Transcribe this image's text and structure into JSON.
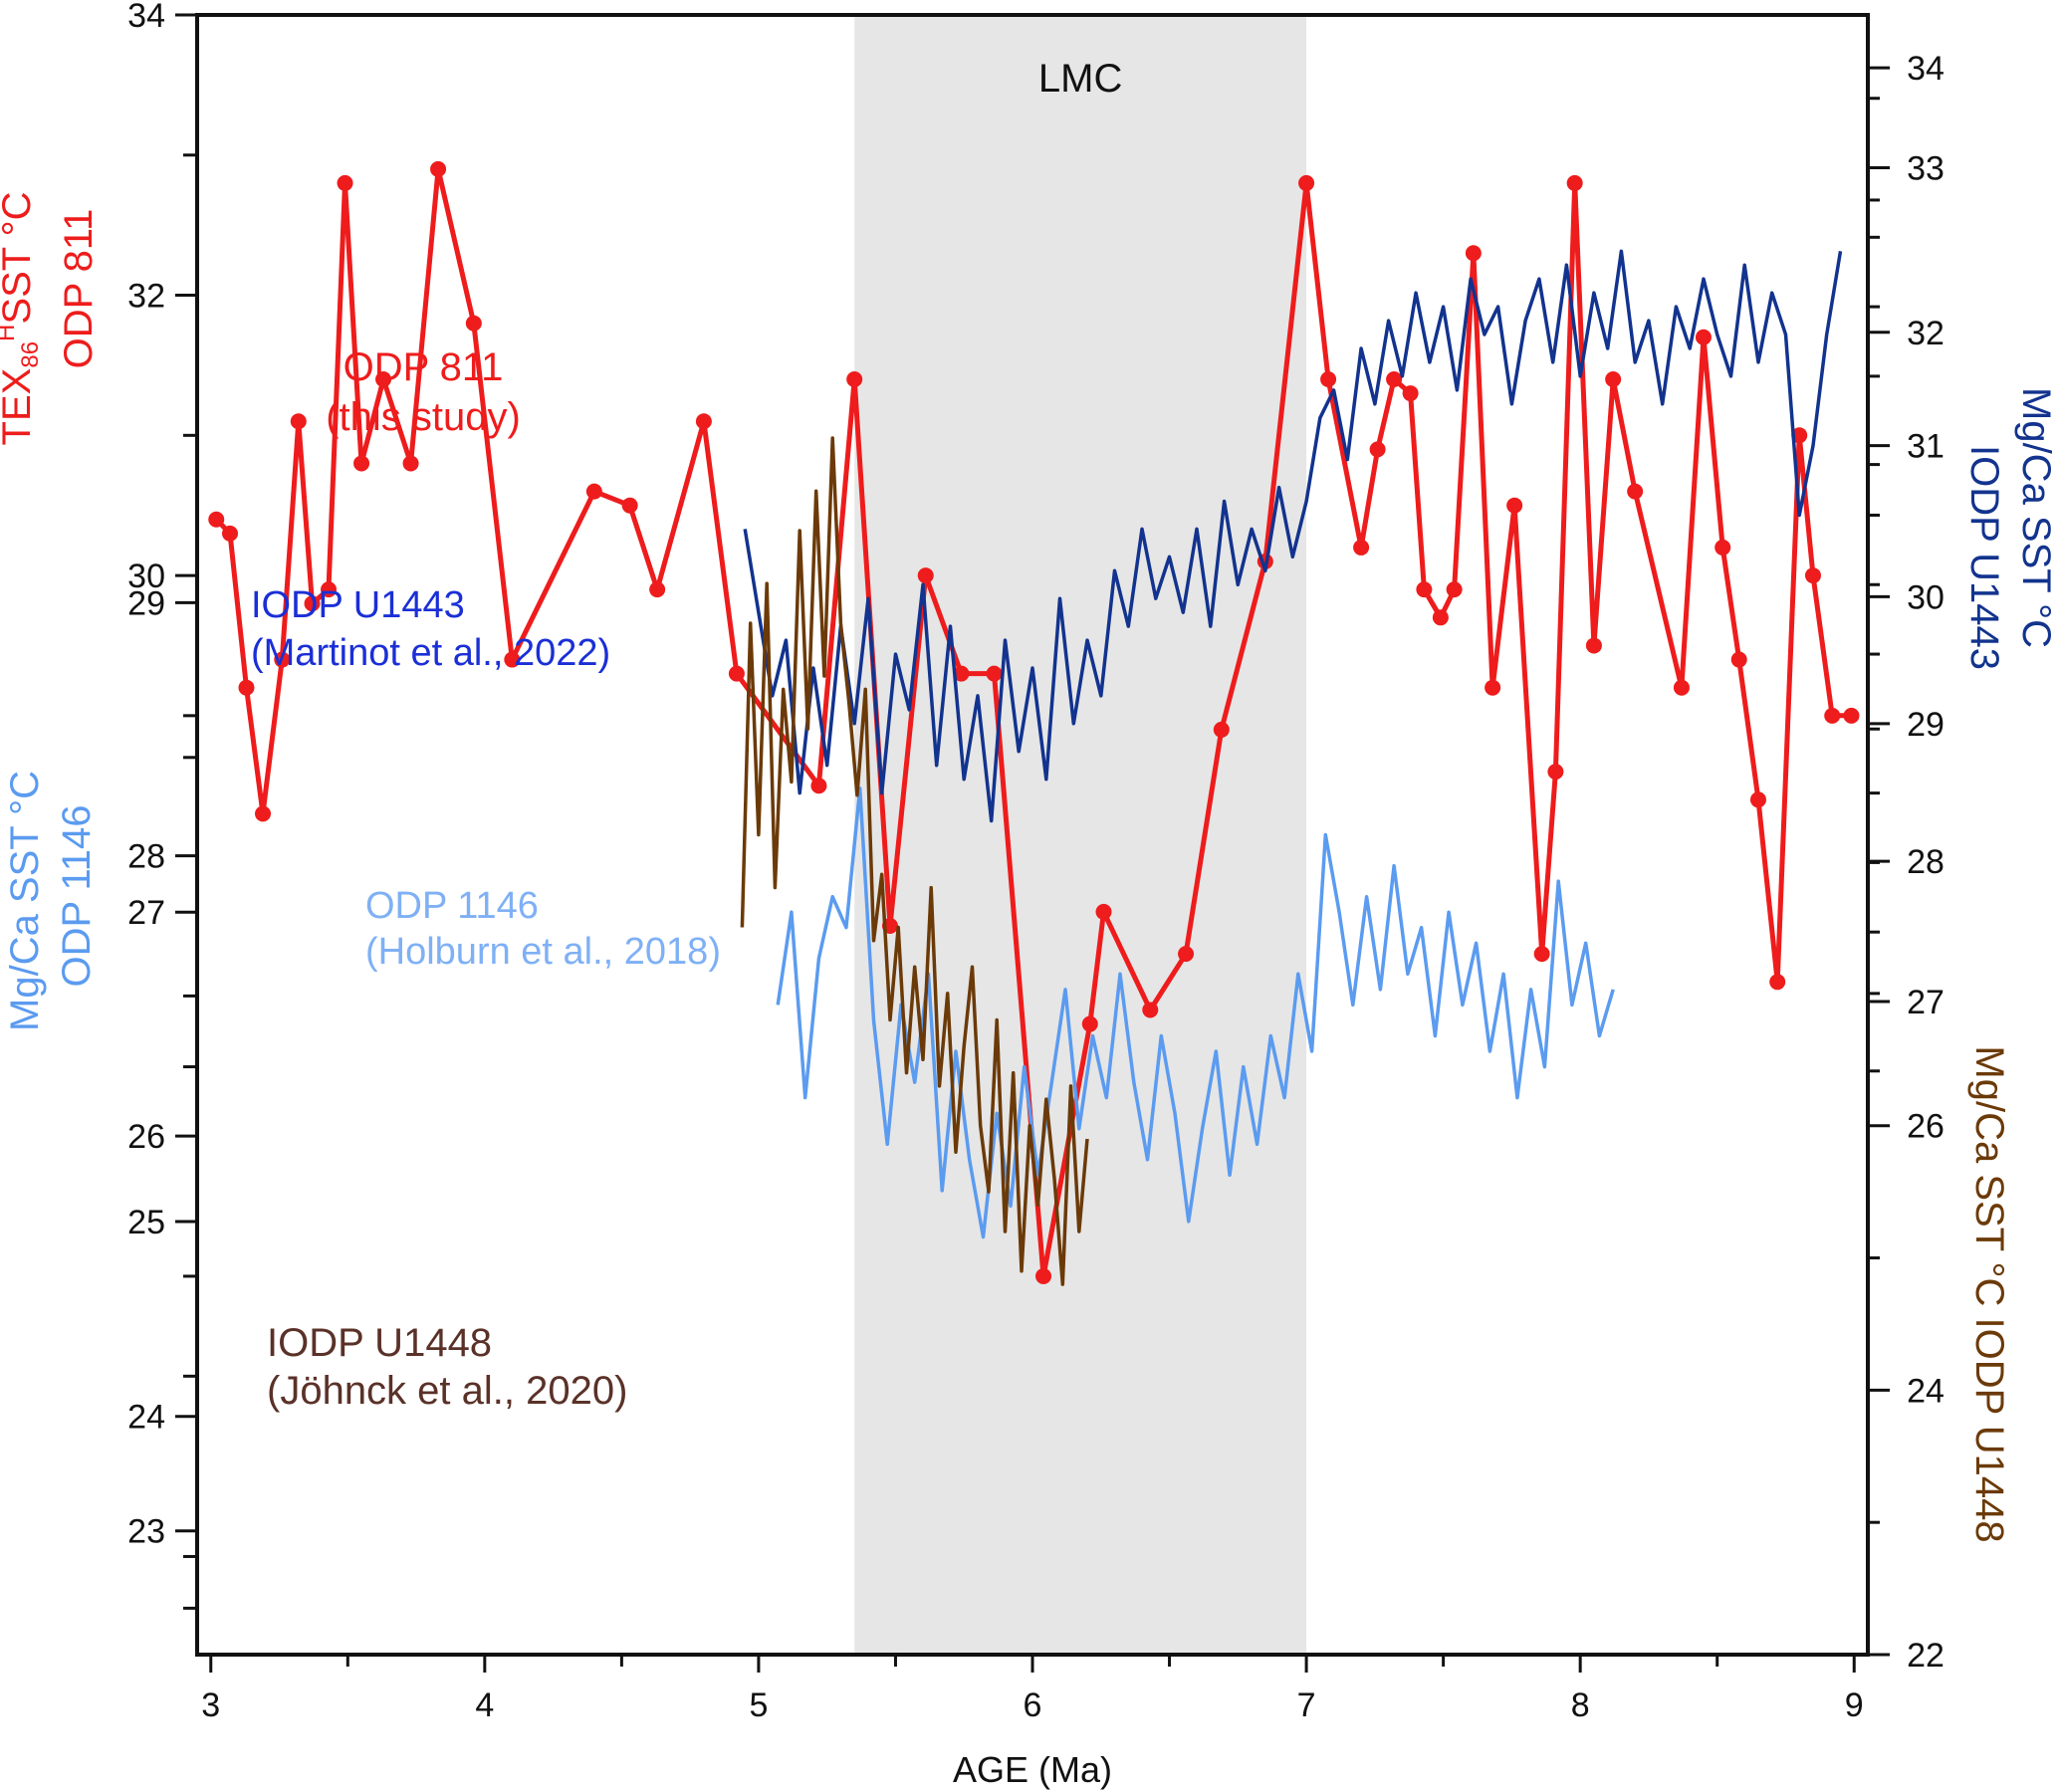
{
  "chart_data": {
    "type": "line",
    "shaded_region": {
      "label": "LMC",
      "x_range": [
        5.35,
        7.0
      ]
    },
    "x_axis": {
      "label": "AGE (Ma)",
      "range": [
        2.95,
        9.05
      ],
      "ticks": [
        "3",
        "4",
        "5",
        "6",
        "7",
        "8",
        "9"
      ]
    },
    "axes": {
      "odp811": {
        "side": "left",
        "label_lines": [
          "TEX86H SST °C",
          "ODP 811"
        ],
        "range": [
          22.3,
          34
        ],
        "ticks": [
          "24",
          "26",
          "28",
          "30",
          "32",
          "34"
        ],
        "color": "#ee1c1c"
      },
      "odp1146": {
        "side": "left",
        "label_lines": [
          "Mg/Ca SST °C",
          "ODP 1146"
        ],
        "range": [
          22.2,
          32.8
        ],
        "ticks": [
          "23",
          "25",
          "27",
          "29"
        ],
        "color": "#5b9bf0"
      },
      "u1443": {
        "side": "right",
        "label_lines": [
          "Mg/Ca SST °C",
          "IODP U1443"
        ],
        "range": [
          22.3,
          34.1
        ],
        "ticks": [
          "27",
          "29",
          "31",
          "33"
        ],
        "color": "#12338e"
      },
      "u1448": {
        "side": "right",
        "label_lines": [
          "Mg/Ca SST °C IODP U1448"
        ],
        "range": [
          22,
          34.4
        ],
        "ticks": [
          "22",
          "24",
          "26",
          "28",
          "30",
          "32",
          "34"
        ],
        "color": "#6b3a08"
      }
    },
    "series": [
      {
        "name": "ODP 811",
        "source": "(this study)",
        "axis": "odp811",
        "color": "#ee1c1c",
        "markers": true,
        "x": [
          3.02,
          3.07,
          3.13,
          3.19,
          3.26,
          3.32,
          3.37,
          3.43,
          3.49,
          3.55,
          3.63,
          3.73,
          3.83,
          3.96,
          4.1,
          4.4,
          4.53,
          4.63,
          4.8,
          4.92,
          5.22,
          5.35,
          5.48,
          5.61,
          5.74,
          5.86,
          6.04,
          6.21,
          6.26,
          6.43,
          6.56,
          6.69,
          6.85,
          7.0,
          7.08,
          7.2,
          7.26,
          7.32,
          7.38,
          7.43,
          7.49,
          7.54,
          7.61,
          7.68,
          7.76,
          7.86,
          7.91,
          7.98,
          8.05,
          8.12,
          8.2,
          8.37,
          8.45,
          8.52,
          8.58,
          8.65,
          8.72,
          8.8,
          8.85,
          8.92,
          8.99
        ],
        "y": [
          30.4,
          30.3,
          29.2,
          28.3,
          29.4,
          31.1,
          29.8,
          29.9,
          32.8,
          30.8,
          31.4,
          30.8,
          32.9,
          31.8,
          29.4,
          30.6,
          30.5,
          29.9,
          31.1,
          29.3,
          28.5,
          31.4,
          27.5,
          30.0,
          29.3,
          29.3,
          25.0,
          26.8,
          27.6,
          26.9,
          27.3,
          28.9,
          30.1,
          32.8,
          31.4,
          30.2,
          30.9,
          31.4,
          31.3,
          29.9,
          29.7,
          29.9,
          32.3,
          29.2,
          30.5,
          27.3,
          28.6,
          32.8,
          29.5,
          31.4,
          30.6,
          29.2,
          31.7,
          30.2,
          29.4,
          28.4,
          27.1,
          31.0,
          30.0,
          29.0,
          29.0
        ]
      },
      {
        "name": "IODP U1443",
        "source": "(Martinot et al., 2022)",
        "axis": "u1443",
        "color": "#12338e",
        "markers": false,
        "x": [
          4.95,
          5.0,
          5.05,
          5.1,
          5.15,
          5.2,
          5.25,
          5.3,
          5.35,
          5.4,
          5.45,
          5.5,
          5.55,
          5.6,
          5.65,
          5.7,
          5.75,
          5.8,
          5.85,
          5.9,
          5.95,
          6.0,
          6.05,
          6.1,
          6.15,
          6.2,
          6.25,
          6.3,
          6.35,
          6.4,
          6.45,
          6.5,
          6.55,
          6.6,
          6.65,
          6.7,
          6.75,
          6.8,
          6.85,
          6.9,
          6.95,
          7.0,
          7.05,
          7.1,
          7.15,
          7.2,
          7.25,
          7.3,
          7.35,
          7.4,
          7.45,
          7.5,
          7.55,
          7.6,
          7.65,
          7.7,
          7.75,
          7.8,
          7.85,
          7.9,
          7.95,
          8.0,
          8.05,
          8.1,
          8.15,
          8.2,
          8.25,
          8.3,
          8.35,
          8.4,
          8.45,
          8.5,
          8.55,
          8.6,
          8.65,
          8.7,
          8.75,
          8.8,
          8.85,
          8.9,
          8.95
        ],
        "y": [
          30.4,
          29.8,
          29.2,
          29.6,
          28.5,
          29.4,
          28.7,
          29.7,
          29.0,
          29.9,
          28.5,
          29.5,
          29.1,
          30.0,
          28.7,
          29.7,
          28.6,
          29.2,
          28.3,
          29.6,
          28.8,
          29.4,
          28.6,
          29.9,
          29.0,
          29.6,
          29.2,
          30.1,
          29.7,
          30.4,
          29.9,
          30.2,
          29.8,
          30.4,
          29.7,
          30.6,
          30.0,
          30.4,
          30.1,
          30.7,
          30.2,
          30.6,
          31.2,
          31.4,
          30.9,
          31.7,
          31.3,
          31.9,
          31.5,
          32.1,
          31.6,
          32.0,
          31.4,
          32.2,
          31.8,
          32.0,
          31.3,
          31.9,
          32.2,
          31.6,
          32.3,
          31.5,
          32.1,
          31.7,
          32.4,
          31.6,
          31.9,
          31.3,
          32.0,
          31.7,
          32.2,
          31.8,
          31.5,
          32.3,
          31.6,
          32.1,
          31.8,
          30.5,
          31.0,
          31.8,
          32.4
        ]
      },
      {
        "name": "ODP 1146",
        "source": "(Holburn et al., 2018)",
        "axis": "odp1146",
        "color": "#5b9bf0",
        "markers": false,
        "x": [
          5.07,
          5.12,
          5.17,
          5.22,
          5.27,
          5.32,
          5.37,
          5.42,
          5.47,
          5.52,
          5.57,
          5.62,
          5.67,
          5.72,
          5.77,
          5.82,
          5.87,
          5.92,
          5.97,
          6.02,
          6.07,
          6.12,
          6.17,
          6.22,
          6.27,
          6.32,
          6.37,
          6.42,
          6.47,
          6.52,
          6.57,
          6.62,
          6.67,
          6.72,
          6.77,
          6.82,
          6.87,
          6.92,
          6.97,
          7.02,
          7.07,
          7.12,
          7.17,
          7.22,
          7.27,
          7.32,
          7.37,
          7.42,
          7.47,
          7.52,
          7.57,
          7.62,
          7.67,
          7.72,
          7.77,
          7.82,
          7.87,
          7.92,
          7.97,
          8.02,
          8.07,
          8.12
        ],
        "y": [
          26.4,
          27.0,
          25.8,
          26.7,
          27.1,
          26.9,
          27.8,
          26.3,
          25.5,
          26.4,
          25.9,
          26.6,
          25.2,
          26.1,
          25.4,
          24.9,
          25.7,
          25.1,
          26.0,
          25.3,
          25.9,
          26.5,
          25.6,
          26.2,
          25.8,
          26.6,
          25.9,
          25.4,
          26.2,
          25.7,
          25.0,
          25.6,
          26.1,
          25.3,
          26.0,
          25.5,
          26.2,
          25.8,
          26.6,
          26.1,
          27.5,
          27.0,
          26.4,
          27.1,
          26.5,
          27.3,
          26.6,
          26.9,
          26.2,
          27.0,
          26.4,
          26.8,
          26.1,
          26.6,
          25.8,
          26.5,
          26.0,
          27.2,
          26.4,
          26.8,
          26.2,
          26.5
        ]
      },
      {
        "name": "IODP U1448",
        "source": "(Jöhnck et al., 2020)",
        "axis": "u1448",
        "color": "#6b3a08",
        "markers": false,
        "x": [
          4.94,
          4.97,
          5.0,
          5.03,
          5.06,
          5.09,
          5.12,
          5.15,
          5.18,
          5.21,
          5.24,
          5.27,
          5.3,
          5.33,
          5.36,
          5.39,
          5.42,
          5.45,
          5.48,
          5.51,
          5.54,
          5.57,
          5.6,
          5.63,
          5.66,
          5.69,
          5.72,
          5.75,
          5.78,
          5.81,
          5.84,
          5.87,
          5.9,
          5.93,
          5.96,
          5.99,
          6.02,
          6.05,
          6.08,
          6.11,
          6.14,
          6.17,
          6.2
        ],
        "y": [
          27.5,
          29.8,
          28.2,
          30.1,
          27.8,
          29.3,
          28.6,
          30.5,
          29.0,
          30.8,
          29.4,
          31.2,
          29.8,
          29.2,
          28.5,
          29.3,
          27.4,
          27.9,
          26.8,
          27.5,
          26.4,
          27.2,
          26.5,
          27.8,
          26.3,
          27.0,
          25.8,
          26.6,
          27.2,
          26.0,
          25.5,
          26.8,
          25.2,
          26.4,
          24.9,
          26.0,
          25.4,
          26.2,
          25.6,
          24.8,
          26.3,
          25.2,
          25.9
        ]
      }
    ],
    "annotations": [
      {
        "series": "ODP 811",
        "line1": "ODP 811",
        "line2": "(this study)"
      },
      {
        "series": "IODP U1443",
        "line1": "IODP U1443",
        "line2": "(Martinot et al., 2022)"
      },
      {
        "series": "ODP 1146",
        "line1": "ODP 1146",
        "line2": "(Holburn et al., 2018)"
      },
      {
        "series": "IODP U1448",
        "line1": "IODP U1448",
        "line2": "(Jöhnck et al., 2020)"
      }
    ]
  }
}
